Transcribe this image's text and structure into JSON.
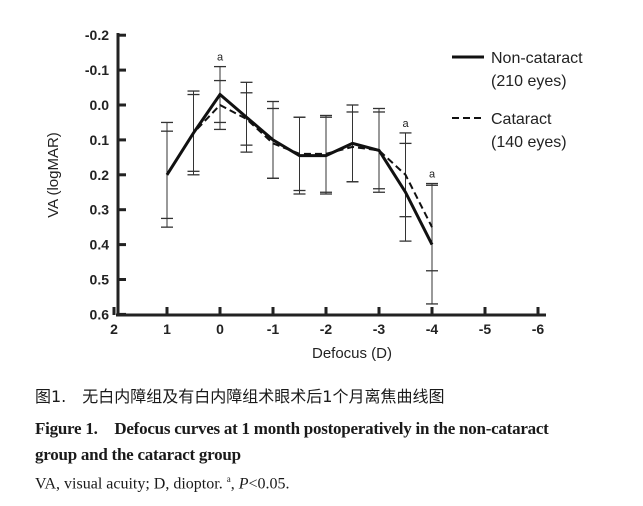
{
  "chart_data": {
    "type": "line",
    "xlabel": "Defocus (D)",
    "ylabel": "VA (logMAR)",
    "xlim": [
      2,
      -6
    ],
    "ylim": [
      -0.2,
      0.6
    ],
    "y_inverted": true,
    "x_ticks": [
      "2",
      "1",
      "0",
      "-1",
      "-2",
      "-3",
      "-4",
      "-5",
      "-6"
    ],
    "y_ticks": [
      "-0.2",
      "-0.1",
      "0.0",
      "0.1",
      "0.2",
      "0.3",
      "0.4",
      "0.5",
      "0.6"
    ],
    "x": [
      1,
      0.5,
      0,
      -0.5,
      -1,
      -1.5,
      -2,
      -2.5,
      -3,
      -3.5,
      -4
    ],
    "series": [
      {
        "name": "Non-cataract",
        "name2": "(210 eyes)",
        "style": "solid",
        "values": [
          0.2,
          0.08,
          -0.03,
          0.035,
          0.1,
          0.145,
          0.145,
          0.11,
          0.13,
          0.25,
          0.4
        ],
        "error": [
          0.15,
          0.12,
          0.08,
          0.1,
          0.11,
          0.11,
          0.11,
          0.11,
          0.12,
          0.14,
          0.17
        ]
      },
      {
        "name": "Cataract",
        "name2": "(140 eyes)",
        "style": "dashed",
        "values": [
          0.2,
          0.08,
          0.0,
          0.04,
          0.11,
          0.14,
          0.14,
          0.12,
          0.13,
          0.2,
          0.35
        ],
        "error": [
          0.125,
          0.11,
          0.07,
          0.075,
          0.1,
          0.105,
          0.11,
          0.1,
          0.11,
          0.12,
          0.125
        ]
      }
    ],
    "annotations": [
      {
        "x": 0,
        "text": "a"
      },
      {
        "x": -3.5,
        "text": "a"
      },
      {
        "x": -4,
        "text": "a"
      }
    ],
    "legend_position": "top-right",
    "grid": false
  },
  "caption": {
    "cn": "图1.　无白内障组及有白内障组术眼术后1个月离焦曲线图",
    "en_line1": "Figure 1.　Defocus curves at 1 month postoperatively in the non-cataract",
    "en_line2": "group and the cataract group",
    "note_a": "VA, visual acuity; D, dioptor. ",
    "note_sup": "a",
    "note_b": ", ",
    "note_p": "P",
    "note_c": "<0.05."
  }
}
